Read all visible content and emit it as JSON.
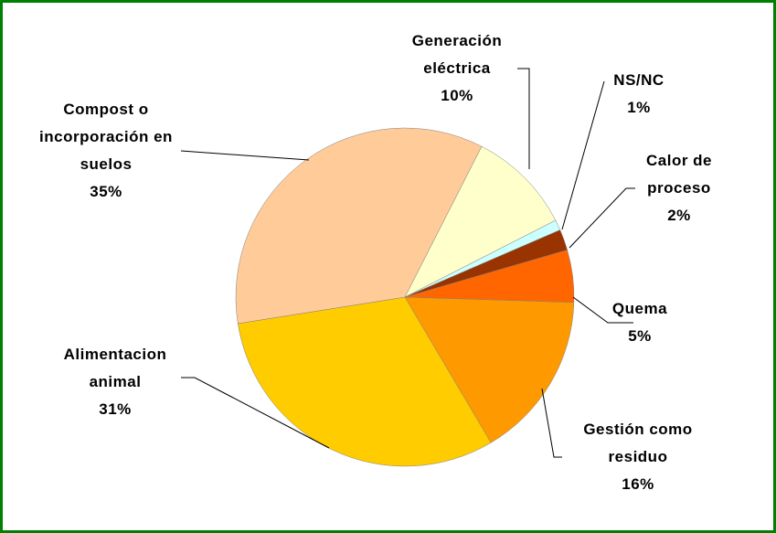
{
  "chart_data": {
    "type": "pie",
    "categories": [
      "Generación eléctrica",
      "NS/NC",
      "Calor de proceso",
      "Quema",
      "Gestión como residuo",
      "Alimentacion animal",
      "Compost o incorporación en suelos"
    ],
    "values": [
      10,
      1,
      2,
      5,
      16,
      31,
      35
    ],
    "value_labels": [
      "10%",
      "1%",
      "2%",
      "5%",
      "16%",
      "31%",
      "35%"
    ],
    "colors": [
      "#FFFFCC",
      "#CCFFFF",
      "#993300",
      "#FF6600",
      "#FF9900",
      "#FFCC00",
      "#FFCC99"
    ]
  }
}
